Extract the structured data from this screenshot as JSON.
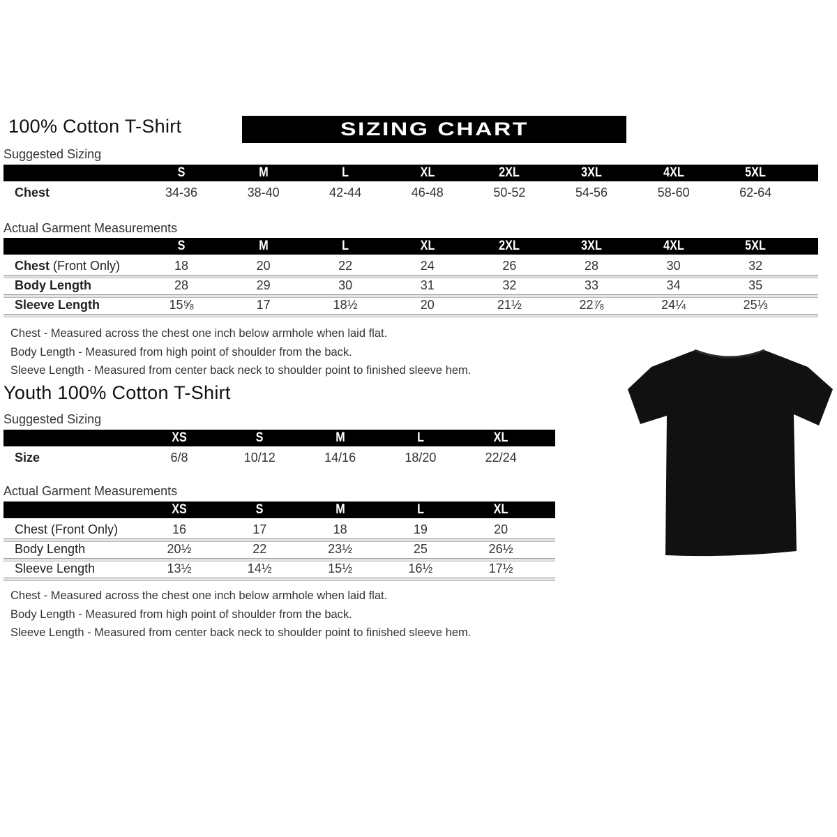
{
  "adult": {
    "title": "100% Cotton T-Shirt",
    "banner": "SIZING CHART",
    "suggested": {
      "label": "Suggested Sizing",
      "sizes": [
        "S",
        "M",
        "L",
        "XL",
        "2XL",
        "3XL",
        "4XL",
        "5XL"
      ],
      "rows": [
        {
          "label": "Chest",
          "values": [
            "34-36",
            "38-40",
            "42-44",
            "46-48",
            "50-52",
            "54-56",
            "58-60",
            "62-64"
          ]
        }
      ]
    },
    "actual": {
      "label": "Actual Garment Measurements",
      "sizes": [
        "S",
        "M",
        "L",
        "XL",
        "2XL",
        "3XL",
        "4XL",
        "5XL"
      ],
      "rows": [
        {
          "label": "Chest",
          "label_extra": "(Front Only)",
          "values": [
            "18",
            "20",
            "22",
            "24",
            "26",
            "28",
            "30",
            "32"
          ]
        },
        {
          "label": "Body Length",
          "values": [
            "28",
            "29",
            "30",
            "31",
            "32",
            "33",
            "34",
            "35"
          ]
        },
        {
          "label": "Sleeve Length",
          "values": [
            "15⅝",
            "17",
            "18½",
            "20",
            "21½",
            "22⅞",
            "24¼",
            "25⅓"
          ]
        }
      ]
    },
    "notes": [
      "Chest - Measured across the chest one inch below armhole when laid flat.",
      "Body Length - Measured from high point of shoulder from the back.",
      "Sleeve Length - Measured from center back neck to shoulder point to finished sleeve hem."
    ]
  },
  "youth": {
    "title": "Youth 100% Cotton T-Shirt",
    "suggested": {
      "label": "Suggested Sizing",
      "sizes": [
        "XS",
        "S",
        "M",
        "L",
        "XL"
      ],
      "rows": [
        {
          "label": "Size",
          "values": [
            "6/8",
            "10/12",
            "14/16",
            "18/20",
            "22/24"
          ]
        }
      ]
    },
    "actual": {
      "label": "Actual Garment Measurements",
      "sizes": [
        "XS",
        "S",
        "M",
        "L",
        "XL"
      ],
      "rows": [
        {
          "label": "Chest (Front Only)",
          "values": [
            "16",
            "17",
            "18",
            "19",
            "20"
          ]
        },
        {
          "label": "Body Length",
          "values": [
            "20½",
            "22",
            "23½",
            "25",
            "26½"
          ]
        },
        {
          "label": "Sleeve Length",
          "values": [
            "13½",
            "14½",
            "15½",
            "16½",
            "17½"
          ]
        }
      ]
    },
    "notes": [
      "Chest - Measured across the chest one inch below armhole when laid flat.",
      "Body Length - Measured from high point of shoulder from the back.",
      "Sleeve Length - Measured from center back neck to shoulder point to finished sleeve hem."
    ]
  },
  "image": {
    "icon": "black-tshirt-icon",
    "color": "#111111"
  }
}
